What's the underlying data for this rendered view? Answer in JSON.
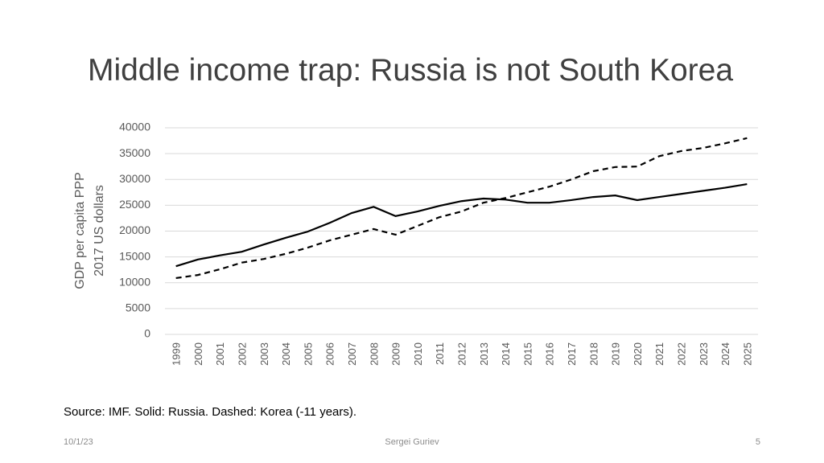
{
  "title": "Middle income trap: Russia is not South Korea",
  "chart_data": {
    "type": "line",
    "y_label_lines": [
      "GDP per capita PPP",
      "2017 US dollars"
    ],
    "categories": [
      "1999",
      "2000",
      "2001",
      "2002",
      "2003",
      "2004",
      "2005",
      "2006",
      "2007",
      "2008",
      "2009",
      "2010",
      "2011",
      "2012",
      "2013",
      "2014",
      "2015",
      "2016",
      "2017",
      "2018",
      "2019",
      "2020",
      "2021",
      "2022",
      "2023",
      "2024",
      "2025"
    ],
    "series": [
      {
        "color": "#000000",
        "style": "solid",
        "values": [
          13200,
          14500,
          15300,
          16000,
          17400,
          18700,
          19900,
          21600,
          23500,
          24700,
          22900,
          23800,
          24900,
          25800,
          26300,
          26100,
          25500,
          25500,
          26000,
          26600,
          26900,
          26000,
          26600,
          27200,
          27800,
          28400,
          29100
        ]
      },
      {
        "color": "#000000",
        "style": "dashed",
        "values": [
          10900,
          11500,
          12600,
          13900,
          14600,
          15600,
          16800,
          18200,
          19300,
          20400,
          19300,
          21000,
          22700,
          23800,
          25500,
          26400,
          27500,
          28600,
          30000,
          31600,
          32400,
          32500,
          34500,
          35500,
          36100,
          37000,
          38000
        ]
      }
    ],
    "ylim": [
      0,
      40000
    ],
    "yticks": [
      0,
      5000,
      10000,
      15000,
      20000,
      25000,
      30000,
      35000,
      40000
    ],
    "grid": true
  },
  "source": "Source: IMF. Solid: Russia. Dashed: Korea (-11 years).",
  "footer": {
    "date": "10/1/23",
    "author": "Sergei Guriev",
    "page": "5"
  }
}
